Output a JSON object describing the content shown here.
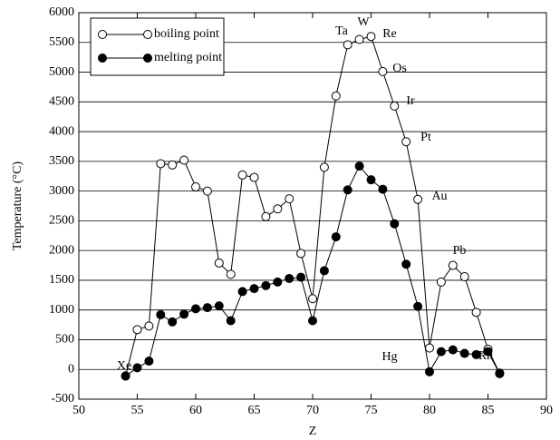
{
  "chart_data": {
    "type": "line",
    "x_label": "Z",
    "y_label": "Temperature (°C)",
    "x": [
      54,
      55,
      56,
      57,
      58,
      59,
      60,
      61,
      62,
      63,
      64,
      65,
      66,
      67,
      68,
      69,
      70,
      71,
      72,
      73,
      74,
      75,
      76,
      77,
      78,
      79,
      80,
      81,
      82,
      83,
      84,
      85,
      86
    ],
    "series": [
      {
        "name": "boiling point",
        "color": "#000000",
        "marker": "open",
        "values": [
          -108,
          670,
          730,
          3460,
          3440,
          3520,
          3070,
          3000,
          1790,
          1600,
          3270,
          3230,
          2570,
          2700,
          2870,
          1950,
          1190,
          3400,
          4600,
          5460,
          5550,
          5600,
          5010,
          4430,
          3830,
          2860,
          360,
          1470,
          1750,
          1560,
          960,
          340,
          -62
        ]
      },
      {
        "name": "melting point",
        "color": "#000000",
        "marker": "filled",
        "values": [
          -112,
          28,
          140,
          920,
          800,
          930,
          1020,
          1040,
          1070,
          820,
          1310,
          1360,
          1410,
          1470,
          1530,
          1550,
          820,
          1660,
          2230,
          3020,
          3420,
          3190,
          3030,
          2450,
          1770,
          1060,
          -39,
          300,
          330,
          270,
          250,
          300,
          -71
        ]
      }
    ],
    "annotations": [
      "Xe",
      "Ta",
      "W",
      "Re",
      "Os",
      "Ir",
      "Pt",
      "Au",
      "Hg",
      "Pb",
      "Rn"
    ],
    "xlim": [
      50,
      90
    ],
    "xticks": [
      50,
      55,
      60,
      65,
      70,
      75,
      80,
      85,
      90
    ],
    "ylim": [
      -500,
      6000
    ],
    "yticks": [
      -500,
      0,
      500,
      1000,
      1500,
      2000,
      2500,
      3000,
      3500,
      4000,
      4500,
      5000,
      5500,
      6000
    ],
    "grid": true,
    "legend": "upper left"
  }
}
